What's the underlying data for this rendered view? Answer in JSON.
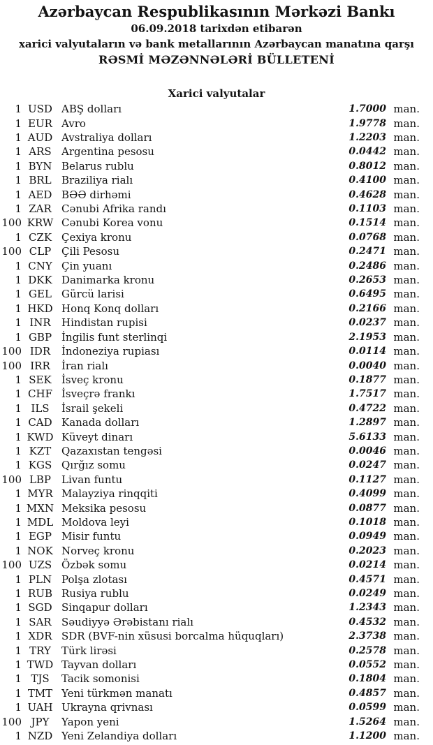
{
  "header": {
    "bank_name": "Azərbaycan Respublikasının Mərkəzi Bankı",
    "date_line": "06.09.2018 tarixdən etibarən",
    "subtitle_line1": "xarici valyutaların və bank metallarının Azərbaycan manatına qarşı",
    "subtitle_line2": "RƏSMİ MƏZƏNNƏLƏRİ BÜLLETENİ"
  },
  "section": {
    "title": "Xarici valyutalar"
  },
  "unit_label": "man.",
  "rates": [
    {
      "qty": "1",
      "code": "USD",
      "name": "ABŞ dolları",
      "rate": "1.7000"
    },
    {
      "qty": "1",
      "code": "EUR",
      "name": "Avro",
      "rate": "1.9778"
    },
    {
      "qty": "1",
      "code": "AUD",
      "name": "Avstraliya dolları",
      "rate": "1.2203"
    },
    {
      "qty": "1",
      "code": "ARS",
      "name": "Argentina pesosu",
      "rate": "0.0442"
    },
    {
      "qty": "1",
      "code": "BYN",
      "name": "Belarus rublu",
      "rate": "0.8012"
    },
    {
      "qty": "1",
      "code": "BRL",
      "name": "Braziliya rialı",
      "rate": "0.4100"
    },
    {
      "qty": "1",
      "code": "AED",
      "name": "BƏƏ dirhəmi",
      "rate": "0.4628"
    },
    {
      "qty": "1",
      "code": "ZAR",
      "name": "Cənubi Afrika randı",
      "rate": "0.1103"
    },
    {
      "qty": "100",
      "code": "KRW",
      "name": "Cənubi Korea vonu",
      "rate": "0.1514"
    },
    {
      "qty": "1",
      "code": "CZK",
      "name": "Çexiya kronu",
      "rate": "0.0768"
    },
    {
      "qty": "100",
      "code": "CLP",
      "name": "Çili Pesosu",
      "rate": "0.2471"
    },
    {
      "qty": "1",
      "code": "CNY",
      "name": "Çin yuanı",
      "rate": "0.2486"
    },
    {
      "qty": "1",
      "code": "DKK",
      "name": "Danimarka kronu",
      "rate": "0.2653"
    },
    {
      "qty": "1",
      "code": "GEL",
      "name": "Gürcü larisi",
      "rate": "0.6495"
    },
    {
      "qty": "1",
      "code": "HKD",
      "name": "Honq Konq dolları",
      "rate": "0.2166"
    },
    {
      "qty": "1",
      "code": "INR",
      "name": "Hindistan rupisi",
      "rate": "0.0237"
    },
    {
      "qty": "1",
      "code": "GBP",
      "name": "İngilis funt sterlinqi",
      "rate": "2.1953"
    },
    {
      "qty": "100",
      "code": "IDR",
      "name": "İndoneziya rupiası",
      "rate": "0.0114"
    },
    {
      "qty": "100",
      "code": "IRR",
      "name": "İran rialı",
      "rate": "0.0040"
    },
    {
      "qty": "1",
      "code": "SEK",
      "name": "İsveç kronu",
      "rate": "0.1877"
    },
    {
      "qty": "1",
      "code": "CHF",
      "name": "İsveçrə frankı",
      "rate": "1.7517"
    },
    {
      "qty": "1",
      "code": "ILS",
      "name": "İsrail şekeli",
      "rate": "0.4722"
    },
    {
      "qty": "1",
      "code": "CAD",
      "name": "Kanada dolları",
      "rate": "1.2897"
    },
    {
      "qty": "1",
      "code": "KWD",
      "name": "Küveyt dinarı",
      "rate": "5.6133"
    },
    {
      "qty": "1",
      "code": "KZT",
      "name": "Qazaxıstan tengəsi",
      "rate": "0.0046"
    },
    {
      "qty": "1",
      "code": "KGS",
      "name": "Qırğız somu",
      "rate": "0.0247"
    },
    {
      "qty": "100",
      "code": "LBP",
      "name": "Livan funtu",
      "rate": "0.1127"
    },
    {
      "qty": "1",
      "code": "MYR",
      "name": "Malayziya rinqqiti",
      "rate": "0.4099"
    },
    {
      "qty": "1",
      "code": "MXN",
      "name": "Meksika pesosu",
      "rate": "0.0877"
    },
    {
      "qty": "1",
      "code": "MDL",
      "name": "Moldova leyi",
      "rate": "0.1018"
    },
    {
      "qty": "1",
      "code": "EGP",
      "name": "Misir funtu",
      "rate": "0.0949"
    },
    {
      "qty": "1",
      "code": "NOK",
      "name": "Norveç kronu",
      "rate": "0.2023"
    },
    {
      "qty": "100",
      "code": "UZS",
      "name": "Özbək somu",
      "rate": "0.0214"
    },
    {
      "qty": "1",
      "code": "PLN",
      "name": "Polşa zlotası",
      "rate": "0.4571"
    },
    {
      "qty": "1",
      "code": "RUB",
      "name": "Rusiya rublu",
      "rate": "0.0249"
    },
    {
      "qty": "1",
      "code": "SGD",
      "name": "Sinqapur dolları",
      "rate": "1.2343"
    },
    {
      "qty": "1",
      "code": "SAR",
      "name": "Səudiyyə Ərəbistanı rialı",
      "rate": "0.4532"
    },
    {
      "qty": "1",
      "code": "XDR",
      "name": "SDR (BVF-nin xüsusi borcalma hüquqları)",
      "rate": "2.3738"
    },
    {
      "qty": "1",
      "code": "TRY",
      "name": "Türk lirəsi",
      "rate": "0.2578"
    },
    {
      "qty": "1",
      "code": "TWD",
      "name": "Tayvan dolları",
      "rate": "0.0552"
    },
    {
      "qty": "1",
      "code": "TJS",
      "name": "Tacik somonisi",
      "rate": "0.1804"
    },
    {
      "qty": "1",
      "code": "TMT",
      "name": "Yeni türkmən manatı",
      "rate": "0.4857"
    },
    {
      "qty": "1",
      "code": "UAH",
      "name": "Ukrayna qrivnası",
      "rate": "0.0599"
    },
    {
      "qty": "100",
      "code": "JPY",
      "name": "Yapon yeni",
      "rate": "1.5264"
    },
    {
      "qty": "1",
      "code": "NZD",
      "name": "Yeni Zelandiya dolları",
      "rate": "1.1200"
    }
  ]
}
